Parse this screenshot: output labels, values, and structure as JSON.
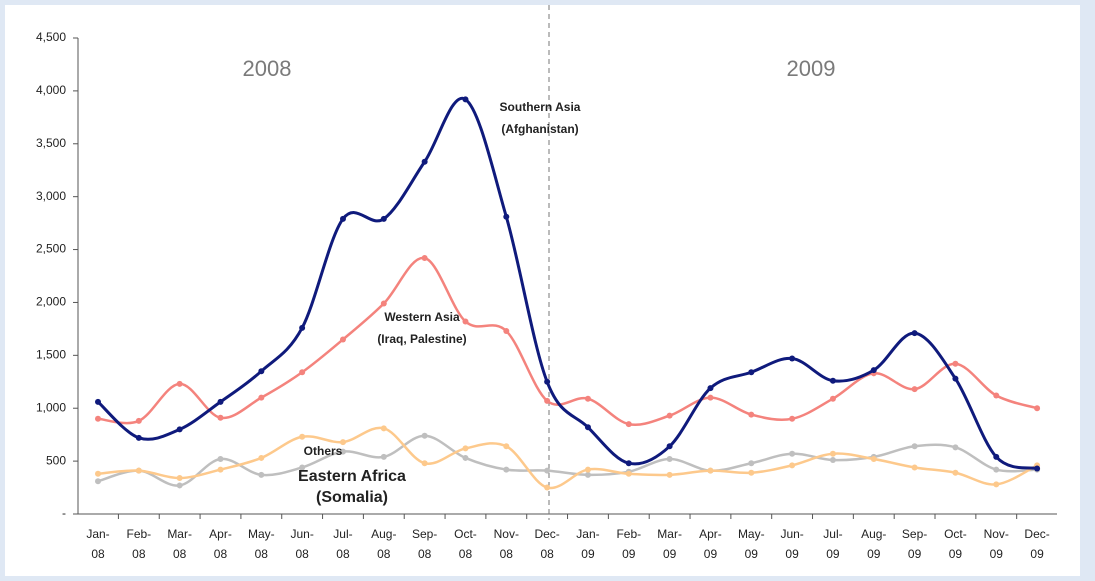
{
  "chart_data": {
    "type": "line",
    "categories": [
      "Jan-08",
      "Feb-08",
      "Mar-08",
      "Apr-08",
      "May-08",
      "Jun-08",
      "Jul-08",
      "Aug-08",
      "Sep-08",
      "Oct-08",
      "Nov-08",
      "Dec-08",
      "Jan-09",
      "Feb-09",
      "Mar-09",
      "Apr-09",
      "May-09",
      "Jun-09",
      "Jul-09",
      "Aug-09",
      "Sep-09",
      "Oct-09",
      "Nov-09",
      "Dec-09"
    ],
    "annotations": [
      "2008",
      "2009"
    ],
    "series": [
      {
        "name": "Southern Asia\n(Afghanistan)",
        "color": "#0f1a7c",
        "values": [
          1060,
          720,
          800,
          1060,
          1350,
          1760,
          2790,
          2790,
          3330,
          3920,
          2810,
          1250,
          820,
          480,
          640,
          1190,
          1340,
          1470,
          1260,
          1360,
          1710,
          1280,
          540,
          430
        ]
      },
      {
        "name": "Western Asia\n(Iraq, Palestine)",
        "color": "#f4837d",
        "values": [
          900,
          880,
          1230,
          910,
          1100,
          1340,
          1650,
          1990,
          2420,
          1820,
          1730,
          1070,
          1090,
          850,
          930,
          1100,
          940,
          900,
          1090,
          1330,
          1180,
          1420,
          1120,
          1000
        ]
      },
      {
        "name": "Others",
        "color": "#fdc98c",
        "values": [
          380,
          410,
          340,
          420,
          530,
          730,
          680,
          810,
          480,
          620,
          640,
          250,
          420,
          380,
          370,
          410,
          390,
          460,
          570,
          520,
          440,
          390,
          280,
          460
        ]
      },
      {
        "name": "Eastern Africa\n(Somalia)",
        "color": "#bfbfbf",
        "values": [
          310,
          410,
          270,
          520,
          370,
          440,
          590,
          540,
          740,
          530,
          420,
          410,
          370,
          400,
          520,
          410,
          480,
          570,
          510,
          540,
          640,
          630,
          420,
          420
        ]
      }
    ],
    "ylim": [
      0,
      4500
    ],
    "yticks": [
      {
        "value": 0,
        "label": "-"
      },
      500,
      {
        "value": 1000,
        "label": "1,000"
      },
      {
        "value": 1500,
        "label": "1,500"
      },
      {
        "value": 2000,
        "label": "2,000"
      },
      {
        "value": 2500,
        "label": "2,500"
      },
      {
        "value": 3000,
        "label": "3,000"
      },
      {
        "value": 3500,
        "label": "3,500"
      },
      {
        "value": 4000,
        "label": "4,000"
      },
      {
        "value": 4500,
        "label": "4,500"
      }
    ],
    "grid": false
  }
}
